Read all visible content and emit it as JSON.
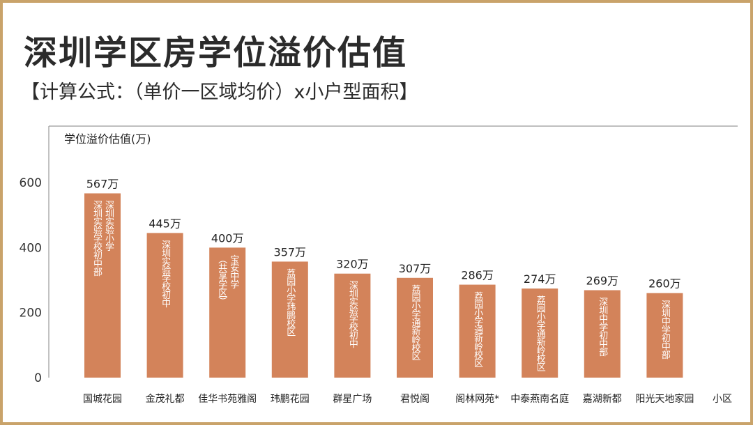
{
  "title": "深圳学区房学位溢价估值",
  "subtitle": "【计算公式：（单价一区域均价）x小户型面积】",
  "colors": {
    "bar": "#d3835a",
    "axis": "#999999",
    "frame": "#c9a36a"
  },
  "chart_data": {
    "type": "bar",
    "title": "深圳学区房学位溢价估值",
    "ylabel": "学位溢价估值(万)",
    "xlabel": "小区",
    "ylim": [
      0,
      680
    ],
    "yticks": [
      0,
      200,
      400,
      600
    ],
    "categories": [
      "国城花园",
      "金茂礼都",
      "佳华书苑雅阁",
      "玮鹏花园",
      "群星广场",
      "君悦阁",
      "阁林网苑*",
      "中泰燕南名庭",
      "嘉湖新都",
      "阳光天地家园"
    ],
    "values": [
      567,
      445,
      400,
      357,
      320,
      307,
      286,
      274,
      269,
      260
    ],
    "value_labels": [
      "567万",
      "445万",
      "400万",
      "357万",
      "320万",
      "307万",
      "286万",
      "274万",
      "269万",
      "260万"
    ],
    "schools": [
      [
        "深圳实验小学",
        "深圳实验学校初中部"
      ],
      [
        "深圳实验学校初中"
      ],
      [
        "宝安中学",
        "（共享学区）"
      ],
      [
        "荔园小学玮鹏校区"
      ],
      [
        "深圳实验学校初中"
      ],
      [
        "荔园小学通新岭校区"
      ],
      [
        "荔园小学通新岭校区"
      ],
      [
        "荔园小学通新岭校区"
      ],
      [
        "深圳中学初中部"
      ],
      [
        "深圳中学初中部"
      ]
    ]
  }
}
